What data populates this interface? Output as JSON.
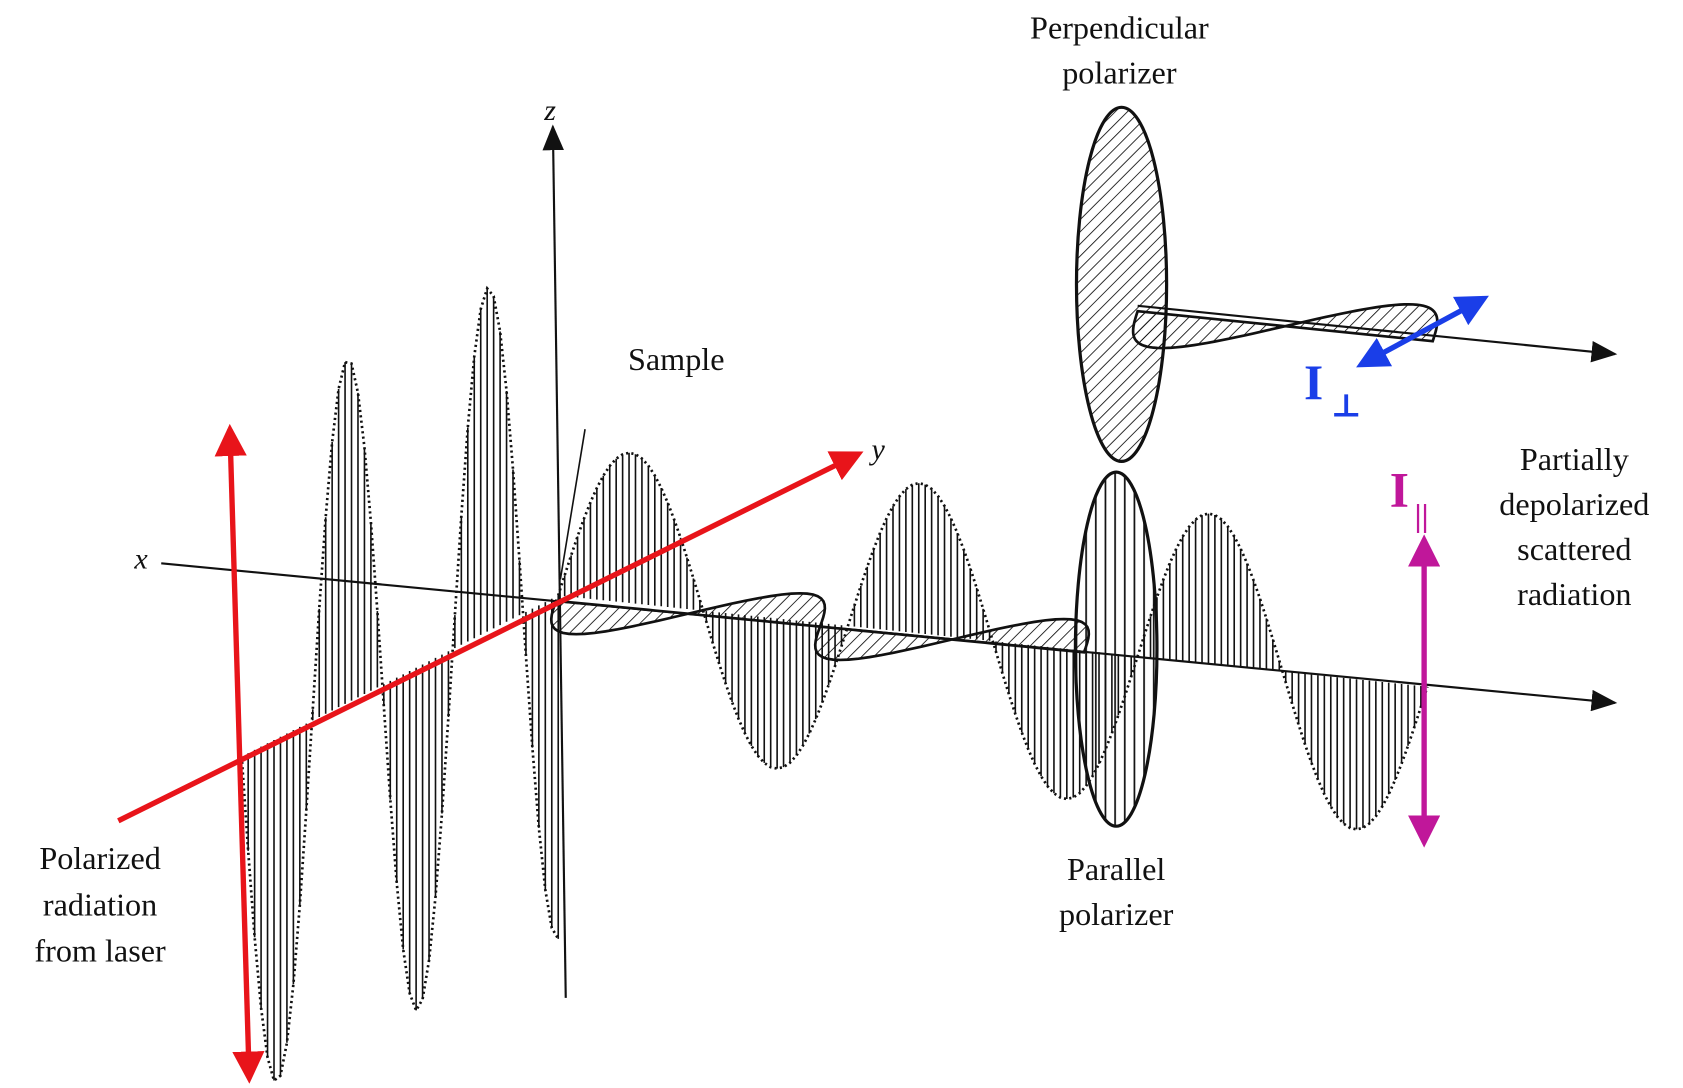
{
  "labels": {
    "perpendicular_polarizer": [
      "Perpendicular",
      "polarizer"
    ],
    "parallel_polarizer": [
      "Parallel",
      "polarizer"
    ],
    "sample": "Sample",
    "scattered": [
      "Partially",
      "depolarized",
      "scattered",
      "radiation"
    ],
    "laser": [
      "Polarized",
      "radiation",
      "from laser"
    ],
    "axis_x": "x",
    "axis_y": "y",
    "axis_z": "z",
    "intensity_perpendicular": {
      "symbol": "I",
      "subscript": "⊥"
    },
    "intensity_parallel": {
      "symbol": "I",
      "subscript": "||"
    }
  }
}
